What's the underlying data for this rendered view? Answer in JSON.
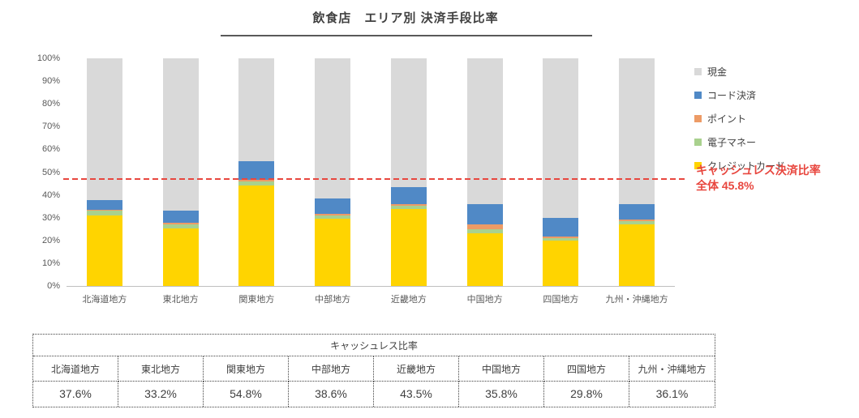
{
  "title": "飲食店　エリア別 決済手段比率",
  "legend": {
    "items": [
      {
        "label": "現金",
        "color": "#D9D9D9"
      },
      {
        "label": "コード決済",
        "color": "#5089C6"
      },
      {
        "label": "ポイント",
        "color": "#ED9B66"
      },
      {
        "label": "電子マネー",
        "color": "#A9D18E"
      },
      {
        "label": "クレジットカード",
        "color": "#FFD400"
      }
    ]
  },
  "annotation": {
    "line1": "キャッシュレス決済比率",
    "line2": "全体 45.8%",
    "value_percent": 45.8,
    "color": "#E8473F"
  },
  "chart_data": {
    "type": "bar",
    "stacked": true,
    "title": "飲食店　エリア別 決済手段比率",
    "categories": [
      "北海道地方",
      "東北地方",
      "関東地方",
      "中部地方",
      "近畿地方",
      "中国地方",
      "四国地方",
      "九州・沖縄地方"
    ],
    "series": [
      {
        "name": "クレジットカード",
        "color": "#FFD400",
        "values": [
          31.0,
          25.4,
          44.3,
          29.6,
          33.8,
          23.0,
          20.0,
          27.0
        ]
      },
      {
        "name": "電子マネー",
        "color": "#A9D18E",
        "values": [
          2.0,
          1.6,
          1.7,
          1.4,
          1.5,
          2.0,
          1.0,
          1.4
        ]
      },
      {
        "name": "ポイント",
        "color": "#ED9B66",
        "values": [
          0.6,
          0.6,
          0.8,
          0.8,
          0.7,
          2.0,
          0.8,
          0.7
        ]
      },
      {
        "name": "コード決済",
        "color": "#5089C6",
        "values": [
          4.0,
          5.6,
          8.0,
          6.8,
          7.5,
          8.8,
          8.0,
          7.0
        ]
      },
      {
        "name": "現金",
        "color": "#D9D9D9",
        "values": [
          62.4,
          66.8,
          45.2,
          61.4,
          56.5,
          64.2,
          70.2,
          63.9
        ]
      }
    ],
    "cashless_totals": [
      37.6,
      33.2,
      54.8,
      38.6,
      43.5,
      35.8,
      29.8,
      36.1
    ],
    "ylim": [
      0,
      100
    ],
    "ytick_labels": [
      "0%",
      "10%",
      "20%",
      "30%",
      "40%",
      "50%",
      "60%",
      "70%",
      "80%",
      "90%",
      "100%"
    ],
    "grid": false,
    "legend_position": "right",
    "reference_line": {
      "value": 45.8,
      "label": "キャッシュレス決済比率 全体 45.8%",
      "color": "#E8473F",
      "style": "dashed"
    }
  },
  "table": {
    "title": "キャッシュレス比率",
    "headers": [
      "北海道地方",
      "東北地方",
      "関東地方",
      "中部地方",
      "近畿地方",
      "中国地方",
      "四国地方",
      "九州・沖縄地方"
    ],
    "values": [
      "37.6%",
      "33.2%",
      "54.8%",
      "38.6%",
      "43.5%",
      "35.8%",
      "29.8%",
      "36.1%"
    ]
  }
}
